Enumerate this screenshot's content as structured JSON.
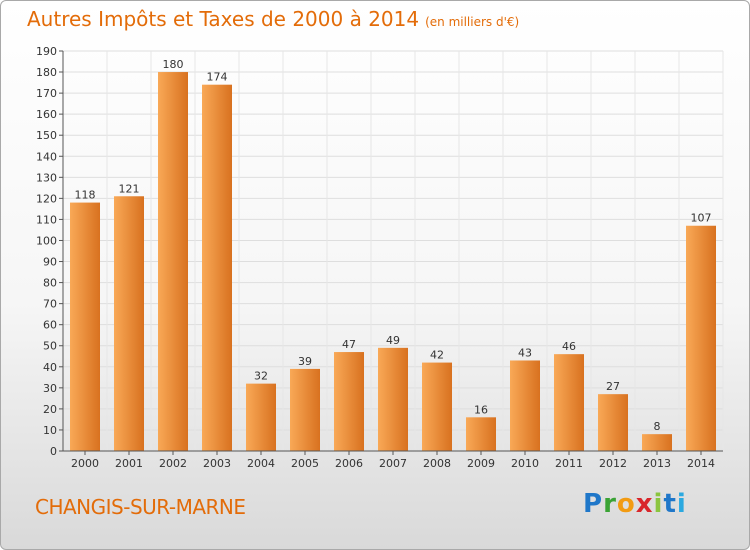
{
  "title": "Autres Impôts et Taxes de 2000 à 2014",
  "subtitle": "(en milliers d'€)",
  "location": "CHANGIS-SUR-MARNE",
  "logo": [
    "P",
    "r",
    "o",
    "x",
    "i",
    "t",
    "i"
  ],
  "colors": {
    "accent": "#e36c09",
    "bar_light": "#f9a957",
    "bar_dark": "#d8711f"
  },
  "chart_data": {
    "type": "bar",
    "title": "Autres Impôts et Taxes de 2000 à 2014",
    "subtitle": "(en milliers d'€)",
    "categories": [
      "2000",
      "2001",
      "2002",
      "2003",
      "2004",
      "2005",
      "2006",
      "2007",
      "2008",
      "2009",
      "2010",
      "2011",
      "2012",
      "2013",
      "2014"
    ],
    "values": [
      118,
      121,
      180,
      174,
      32,
      39,
      47,
      49,
      42,
      16,
      43,
      46,
      27,
      8,
      107
    ],
    "ylim": [
      0,
      190
    ],
    "yticks": [
      0,
      10,
      20,
      30,
      40,
      50,
      60,
      70,
      80,
      90,
      100,
      110,
      120,
      130,
      140,
      150,
      160,
      170,
      180,
      190
    ],
    "grid": true,
    "xlabel": "",
    "ylabel": ""
  }
}
